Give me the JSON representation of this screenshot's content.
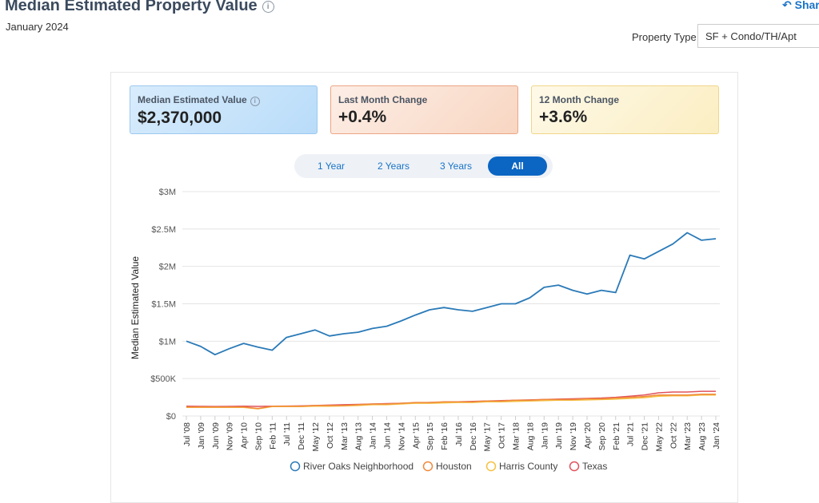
{
  "header": {
    "title": "Median Estimated Property Value",
    "subtitle": "January 2024",
    "share": "Share"
  },
  "filter": {
    "label": "Property Type",
    "value": "SF + Condo/TH/Apt"
  },
  "cards": [
    {
      "label": "Median Estimated Value",
      "value": "$2,370,000"
    },
    {
      "label": "Last Month Change",
      "value": "+0.4%"
    },
    {
      "label": "12 Month Change",
      "value": "+3.6%"
    }
  ],
  "ranges": [
    "1 Year",
    "2 Years",
    "3 Years",
    "All"
  ],
  "chart_data": {
    "type": "line",
    "ylabel": "Median Estimated Value",
    "categories": [
      "Jul '08",
      "Jan '09",
      "Jun '09",
      "Nov '09",
      "Apr '10",
      "Sep '10",
      "Feb '11",
      "Jul '11",
      "Dec '11",
      "May '12",
      "Oct '12",
      "Mar '13",
      "Aug '13",
      "Jan '14",
      "Jun '14",
      "Nov '14",
      "Apr '15",
      "Sep '15",
      "Feb '16",
      "Jul '16",
      "Dec '16",
      "May '17",
      "Oct '17",
      "Mar '18",
      "Aug '18",
      "Jan '19",
      "Jun '19",
      "Nov '19",
      "Apr '20",
      "Sep '20",
      "Feb '21",
      "Jul '21",
      "Dec '21",
      "May '22",
      "Oct '22",
      "Mar '23",
      "Aug '23",
      "Jan '24"
    ],
    "series": [
      {
        "name": "River Oaks Neighborhood",
        "color": "#2a7ab8",
        "values": [
          1000000,
          930000,
          820000,
          900000,
          970000,
          920000,
          880000,
          1050000,
          1100000,
          1150000,
          1070000,
          1100000,
          1120000,
          1170000,
          1200000,
          1270000,
          1350000,
          1420000,
          1450000,
          1420000,
          1400000,
          1450000,
          1500000,
          1500000,
          1580000,
          1720000,
          1750000,
          1680000,
          1630000,
          1680000,
          1650000,
          2150000,
          2100000,
          2200000,
          2300000,
          2450000,
          2350000,
          2370000
        ]
      },
      {
        "name": "Houston",
        "color": "#f0883c",
        "values": [
          120000,
          120000,
          120000,
          120000,
          120000,
          100000,
          130000,
          130000,
          130000,
          140000,
          140000,
          140000,
          150000,
          160000,
          160000,
          170000,
          180000,
          180000,
          190000,
          190000,
          190000,
          200000,
          200000,
          210000,
          210000,
          220000,
          220000,
          220000,
          230000,
          230000,
          240000,
          250000,
          260000,
          280000,
          280000,
          280000,
          290000,
          290000
        ]
      },
      {
        "name": "Harris County",
        "color": "#f5c040",
        "values": [
          115000,
          115000,
          115000,
          115000,
          115000,
          95000,
          125000,
          125000,
          125000,
          130000,
          130000,
          135000,
          140000,
          150000,
          150000,
          160000,
          170000,
          170000,
          175000,
          180000,
          180000,
          190000,
          190000,
          195000,
          200000,
          205000,
          210000,
          210000,
          215000,
          220000,
          225000,
          235000,
          245000,
          265000,
          270000,
          270000,
          280000,
          280000
        ]
      },
      {
        "name": "Texas",
        "color": "#e0525c",
        "values": [
          130000,
          128000,
          127000,
          128000,
          130000,
          128000,
          130000,
          132000,
          135000,
          140000,
          145000,
          150000,
          155000,
          160000,
          165000,
          170000,
          175000,
          180000,
          185000,
          190000,
          195000,
          200000,
          205000,
          210000,
          215000,
          220000,
          225000,
          230000,
          235000,
          240000,
          250000,
          265000,
          280000,
          310000,
          320000,
          320000,
          330000,
          330000
        ]
      }
    ],
    "ylim": [
      0,
      3000000
    ],
    "yticks": [
      {
        "value": 0,
        "label": "$0"
      },
      {
        "value": 500000,
        "label": "$500K"
      },
      {
        "value": 1000000,
        "label": "$1M"
      },
      {
        "value": 1500000,
        "label": "$1.5M"
      },
      {
        "value": 2000000,
        "label": "$2M"
      },
      {
        "value": 2500000,
        "label": "$2.5M"
      },
      {
        "value": 3000000,
        "label": "$3M"
      }
    ],
    "grid": true,
    "legend": "bottom"
  }
}
